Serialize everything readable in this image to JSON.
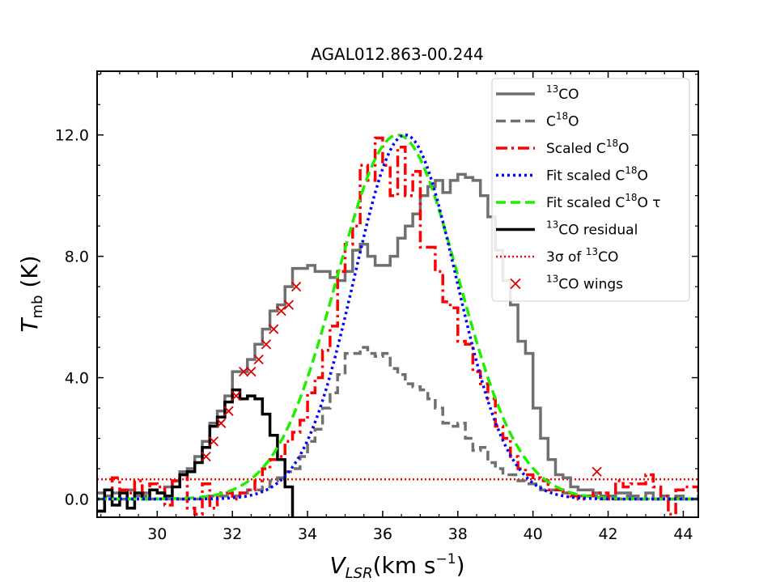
{
  "chart_data": {
    "type": "line",
    "title": "AGAL012.863-00.244",
    "xlabel": {
      "main": "V",
      "sub": "LSR",
      "units": "(km s",
      "sup": "−1",
      "close": ")"
    },
    "ylabel": {
      "main": "T",
      "sub": "mb",
      "units": " (K)"
    },
    "xlim": [
      28.4,
      44.4
    ],
    "ylim": [
      -0.6,
      14.1
    ],
    "xticks": [
      30,
      32,
      34,
      36,
      38,
      40,
      42,
      44
    ],
    "xtick_labels": [
      "30",
      "32",
      "34",
      "36",
      "38",
      "40",
      "42",
      "44"
    ],
    "yticks": [
      0,
      4,
      8,
      12
    ],
    "ytick_labels": [
      "0.0",
      "4.0",
      "8.0",
      "12.0"
    ],
    "grid": false,
    "legend_position": "top-right",
    "legend": [
      {
        "key": "co13",
        "pre": "",
        "sup": "13",
        "post": "CO"
      },
      {
        "key": "c18o",
        "pre": "C",
        "sup": "18",
        "post": "O"
      },
      {
        "key": "scaled",
        "pre": "Scaled C",
        "sup": "18",
        "post": "O"
      },
      {
        "key": "fit",
        "pre": "Fit scaled C",
        "sup": "18",
        "post": "O"
      },
      {
        "key": "fittau",
        "pre": "Fit scaled C",
        "sup": "18",
        "post": "O τ"
      },
      {
        "key": "resid",
        "pre": "",
        "sup": "13",
        "post": "CO residual"
      },
      {
        "key": "sigma",
        "pre": "3σ of ",
        "sup": "13",
        "post": "CO"
      },
      {
        "key": "wings",
        "pre": "",
        "sup": "13",
        "post": "CO wings"
      }
    ],
    "colors": {
      "co13": "#707070",
      "c18o": "#707070",
      "scaled": "#ff0000",
      "fit": "#0000ff",
      "fittau": "#22ee00",
      "resid": "#000000",
      "sigma": "#ff0000",
      "wings": "#dd0000"
    },
    "bin_width": 0.2,
    "x_start": 28.4,
    "series": {
      "co13": [
        0.2,
        0.1,
        0.2,
        0.0,
        0.3,
        0.1,
        0.2,
        0.3,
        0.2,
        0.4,
        0.6,
        0.9,
        1.0,
        1.4,
        1.9,
        2.5,
        2.9,
        3.4,
        4.2,
        4.2,
        4.6,
        5.1,
        5.6,
        6.2,
        6.4,
        7.0,
        7.6,
        7.6,
        7.7,
        7.5,
        7.5,
        7.3,
        7.2,
        7.5,
        8.2,
        8.4,
        8.0,
        7.7,
        7.7,
        8.0,
        8.6,
        9.0,
        9.4,
        10.0,
        10.3,
        10.5,
        10.1,
        10.5,
        10.7,
        10.6,
        10.5,
        10.0,
        9.3,
        8.2,
        7.2,
        6.4,
        5.2,
        4.8,
        3.0,
        2.0,
        1.3,
        0.8,
        0.7,
        0.4,
        0.3,
        0.3,
        0.2,
        0.1,
        0.1,
        0.2,
        0.2,
        0.1,
        0.0,
        0.2,
        0.0,
        0.1,
        0.0,
        0.1,
        0.0,
        0.0,
        0.1
      ],
      "c18o": [
        0.0,
        0.0,
        0.0,
        0.0,
        0.0,
        0.0,
        0.1,
        0.0,
        0.0,
        0.0,
        0.0,
        0.0,
        0.0,
        0.0,
        0.0,
        0.1,
        0.1,
        0.1,
        0.1,
        0.2,
        0.3,
        0.3,
        0.4,
        0.6,
        0.7,
        0.9,
        1.0,
        1.4,
        1.9,
        2.3,
        3.0,
        3.5,
        4.1,
        4.8,
        4.8,
        5.0,
        4.8,
        4.7,
        4.8,
        4.3,
        4.1,
        3.8,
        3.7,
        3.6,
        3.3,
        3.0,
        2.5,
        2.4,
        2.5,
        2.0,
        1.6,
        1.7,
        1.2,
        1.0,
        0.8,
        0.8,
        0.6,
        0.5,
        0.5,
        0.3,
        0.3,
        0.3,
        0.2,
        0.1,
        0.1,
        0.1,
        0.1,
        0.0,
        0.0,
        0.0,
        0.1,
        0.0,
        0.0,
        0.0,
        0.0,
        0.1,
        0.0,
        0.0,
        0.0,
        0.0,
        0.1
      ],
      "scaled": [
        -0.4,
        0.3,
        0.7,
        0.3,
        0.2,
        0.6,
        0.2,
        0.5,
        0.4,
        -0.2,
        0.6,
        0.8,
        -0.3,
        -0.5,
        0.5,
        -0.3,
        0.2,
        0.2,
        0.0,
        0.2,
        0.3,
        0.6,
        1.0,
        1.3,
        1.4,
        1.9,
        2.2,
        2.6,
        3.5,
        4.0,
        4.9,
        5.7,
        7.5,
        8.4,
        9.0,
        11.0,
        10.5,
        11.9,
        11.0,
        10.0,
        11.6,
        10.0,
        10.8,
        8.3,
        8.3,
        7.5,
        6.5,
        6.3,
        5.2,
        5.1,
        4.2,
        3.8,
        3.3,
        2.4,
        2.0,
        1.4,
        1.0,
        0.8,
        0.7,
        0.6,
        0.3,
        0.3,
        0.2,
        0.1,
        0.0,
        0.1,
        0.2,
        0.2,
        0.0,
        0.6,
        0.4,
        0.5,
        0.5,
        0.8,
        0.4,
        0.1,
        -0.5,
        0.3,
        0.4,
        0.4,
        0.2
      ],
      "resid": [
        -0.4,
        0.3,
        -0.2,
        0.2,
        -0.3,
        0.2,
        0.0,
        0.3,
        0.2,
        0.1,
        0.4,
        0.8,
        0.9,
        1.2,
        1.7,
        2.4,
        2.7,
        3.2,
        3.6,
        3.3,
        3.4,
        3.3,
        2.8,
        2.1,
        1.3,
        0.4,
        -2,
        -2,
        -2,
        -2,
        -2,
        -2,
        -2,
        -2,
        -2,
        -2,
        -2,
        -2,
        -2,
        -2,
        -2,
        -2,
        -2,
        -2,
        -2,
        -2,
        -2,
        -2,
        -2,
        -2,
        -2,
        -2,
        -2,
        -2,
        -2,
        -2,
        -2,
        -2,
        -2,
        -2,
        -2,
        -2,
        -2,
        -2,
        -2,
        -2,
        -2,
        -2,
        -2,
        -2,
        -2,
        -2,
        -2,
        -2,
        -2,
        -2,
        -2,
        -2,
        -2,
        -2,
        -2
      ]
    },
    "fit": {
      "amplitude": 12.0,
      "center": 36.6,
      "sigma": 1.36
    },
    "fit_tau": {
      "amplitude": 12.0,
      "center": 36.4,
      "sigma": 1.62
    },
    "three_sigma": 0.65,
    "wing_points": [
      [
        31.3,
        1.4
      ],
      [
        31.5,
        1.9
      ],
      [
        31.7,
        2.5
      ],
      [
        31.9,
        2.9
      ],
      [
        32.1,
        3.4
      ],
      [
        32.3,
        4.2
      ],
      [
        32.5,
        4.2
      ],
      [
        32.7,
        4.6
      ],
      [
        32.9,
        5.1
      ],
      [
        33.1,
        5.6
      ],
      [
        33.3,
        6.2
      ],
      [
        33.5,
        6.4
      ],
      [
        33.7,
        7.0
      ],
      [
        41.7,
        0.9
      ]
    ]
  }
}
